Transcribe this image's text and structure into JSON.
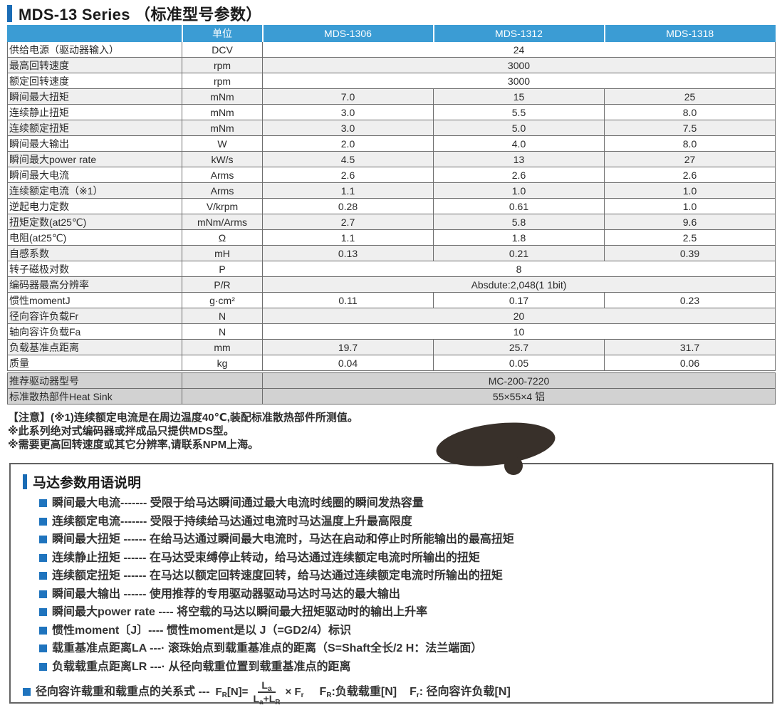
{
  "page": {
    "title": "MDS-13 Series （标准型号参数）"
  },
  "colors": {
    "header_blue": "#3b9cd4",
    "accent_blue": "#1a6cb5",
    "bullet_blue": "#1f74be",
    "row_stripe": "#efefef",
    "footer_gray": "#d2d2d2",
    "ink_blot": "#38302a"
  },
  "table": {
    "header": [
      "",
      "单位",
      "MDS-1306",
      "MDS-1312",
      "MDS-1318"
    ],
    "rows": [
      {
        "name": "供给电源（驱动器输入）",
        "unit": "DCV",
        "span": "24"
      },
      {
        "name": "最高回转速度",
        "unit": "rpm",
        "span": "3000"
      },
      {
        "name": "额定回转速度",
        "unit": "rpm",
        "span": "3000"
      },
      {
        "name": "瞬间最大扭矩",
        "unit": "mNm",
        "values": [
          "7.0",
          "15",
          "25"
        ]
      },
      {
        "name": "连续静止扭矩",
        "unit": "mNm",
        "values": [
          "3.0",
          "5.5",
          "8.0"
        ]
      },
      {
        "name": "连续额定扭矩",
        "unit": "mNm",
        "values": [
          "3.0",
          "5.0",
          "7.5"
        ]
      },
      {
        "name": "瞬间最大输出",
        "unit": "W",
        "values": [
          "2.0",
          "4.0",
          "8.0"
        ]
      },
      {
        "name": "瞬间最大power rate",
        "unit": "kW/s",
        "values": [
          "4.5",
          "13",
          "27"
        ]
      },
      {
        "name": "瞬间最大电流",
        "unit": "Arms",
        "values": [
          "2.6",
          "2.6",
          "2.6"
        ]
      },
      {
        "name": "连续额定电流（※1）",
        "unit": "Arms",
        "values": [
          "1.1",
          "1.0",
          "1.0"
        ]
      },
      {
        "name": "逆起电力定数",
        "unit": "V/krpm",
        "values": [
          "0.28",
          "0.61",
          "1.0"
        ]
      },
      {
        "name": "扭矩定数(at25℃)",
        "unit": "mNm/Arms",
        "values": [
          "2.7",
          "5.8",
          "9.6"
        ]
      },
      {
        "name": "电阻(at25℃)",
        "unit": "Ω",
        "values": [
          "1.1",
          "1.8",
          "2.5"
        ]
      },
      {
        "name": "自感系数",
        "unit": "mH",
        "values": [
          "0.13",
          "0.21",
          "0.39"
        ]
      },
      {
        "name": "转子磁极对数",
        "unit": "P",
        "span": "8"
      },
      {
        "name": "编码器最高分辨率",
        "unit": "P/R",
        "span": "Absdute:2,048(1 1bit)"
      },
      {
        "name": "惯性momentJ",
        "unit": "g·cm²",
        "values": [
          "0.11",
          "0.17",
          "0.23"
        ]
      },
      {
        "name": "径向容许负载Fr",
        "unit": "N",
        "span": "20"
      },
      {
        "name": "轴向容许负载Fa",
        "unit": "N",
        "span": "10"
      },
      {
        "name": "负载基准点距离",
        "unit": "mm",
        "values": [
          "19.7",
          "25.7",
          "31.7"
        ]
      },
      {
        "name": "质量",
        "unit": "kg",
        "values": [
          "0.04",
          "0.05",
          "0.06"
        ]
      }
    ],
    "footer_rows": [
      {
        "name": "推荐驱动器型号",
        "span": "MC-200-7220"
      },
      {
        "name": "标准散热部件Heat Sink",
        "span": "55×55×4 铝"
      }
    ]
  },
  "notes": {
    "lines": [
      "【注意】(※1)连续额定电流是在周边温度40℃,装配标准散热部件所测值。",
      "※此系列绝对式编码器或拌成品只提供MDS型。",
      "※需要更高回转速度或其它分辨率,请联系NPM上海。"
    ]
  },
  "terms": {
    "title": "马达参数用语说明",
    "items": [
      "瞬间最大电流------- 受限于给马达瞬间通过最大电流时线圈的瞬间发热容量",
      "连续额定电流------- 受限于持续给马达通过电流时马达温度上升最高限度",
      "瞬间最大扭矩 ------ 在给马达通过瞬间最大电流时，马达在启动和停止时所能输出的最高扭矩",
      "连续静止扭矩 ------ 在马达受束缚停止转动，给马达通过连续额定电流时所输出的扭矩",
      "连续额定扭矩 ------ 在马达以额定回转速度回转，给马达通过连续额定电流时所输出的扭矩",
      "瞬间最大输出 ------  使用推荐的专用驱动器驱动马达时马达的最大输出",
      "瞬间最大power rate ---- 将空载的马达以瞬间最大扭矩驱动时的输出上升率",
      "惯性moment〔J〕---- 惯性moment是以 J（=GD2/4）标识",
      "载重基准点距离LA ---· 滚珠始点到载重基准点的距离（S=Shaft全长/2 H：法兰端面）",
      "负载载重点距离LR ---· 从径向载重位置到载重基准点的距离"
    ],
    "formula": {
      "label": "径向容许载重和载重点的关系式 ---",
      "lhs_main": "F",
      "lhs_sub": "R",
      "lhs_rest": "[N]=",
      "num_main": "L",
      "num_sub": "a",
      "den_a": "L",
      "den_a_sub": "a",
      "den_b": "+L",
      "den_b_sub": "R",
      "times_main": "× F",
      "times_sub": "r",
      "legend_a_main": "F",
      "legend_a_sub": "R",
      "legend_a_text": ":负载载重[N]",
      "legend_b_main": "F",
      "legend_b_sub": "r",
      "legend_b_text": ": 径向容许负载[N]"
    }
  }
}
